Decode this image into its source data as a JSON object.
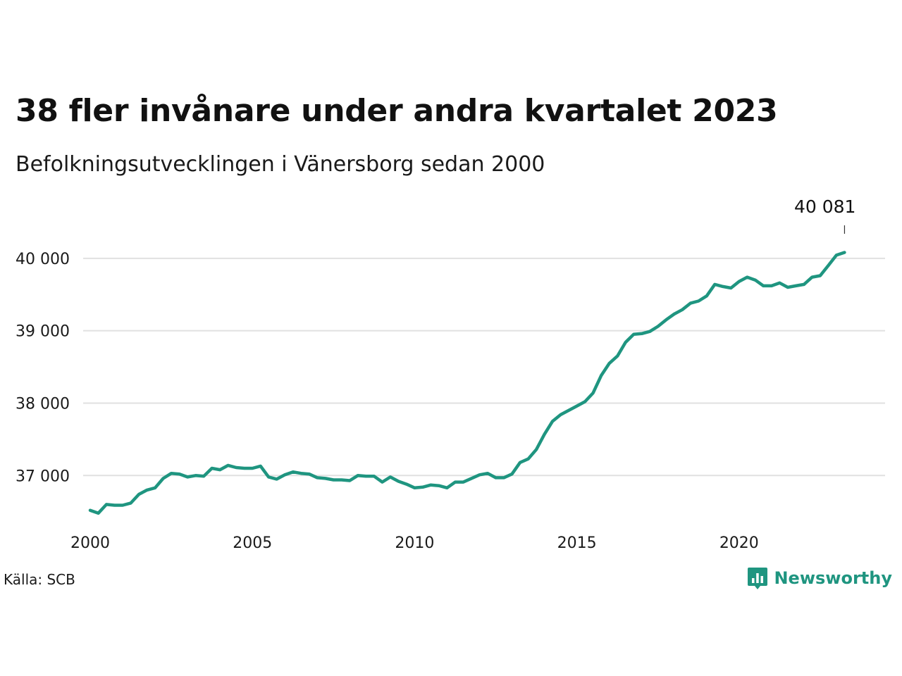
{
  "chart_data": {
    "type": "line",
    "title": "38 fler invånare under andra kvartalet 2023",
    "subtitle": "Befolkningsutvecklingen i Vänersborg sedan 2000",
    "xlabel": "",
    "ylabel": "",
    "x_ticks": [
      2000,
      2005,
      2010,
      2015,
      2020
    ],
    "x_tick_labels": [
      "2000",
      "2005",
      "2010",
      "2015",
      "2020"
    ],
    "y_ticks": [
      37000,
      38000,
      39000,
      40000
    ],
    "y_tick_labels": [
      "37 000",
      "38 000",
      "39 000",
      "40 000"
    ],
    "xlim": [
      2000,
      2024.5
    ],
    "ylim": [
      36400,
      40650
    ],
    "grid": "horizontal",
    "line_color": "#1f9580",
    "last_value_label": "40 081",
    "series": [
      {
        "points": [
          [
            2000.0,
            36520
          ],
          [
            2000.25,
            36480
          ],
          [
            2000.5,
            36600
          ],
          [
            2000.75,
            36590
          ],
          [
            2001.0,
            36590
          ],
          [
            2001.25,
            36620
          ],
          [
            2001.5,
            36740
          ],
          [
            2001.75,
            36800
          ],
          [
            2002.0,
            36830
          ],
          [
            2002.25,
            36960
          ],
          [
            2002.5,
            37030
          ],
          [
            2002.75,
            37020
          ],
          [
            2003.0,
            36980
          ],
          [
            2003.25,
            37000
          ],
          [
            2003.5,
            36990
          ],
          [
            2003.75,
            37100
          ],
          [
            2004.0,
            37080
          ],
          [
            2004.25,
            37140
          ],
          [
            2004.5,
            37110
          ],
          [
            2004.75,
            37100
          ],
          [
            2005.0,
            37100
          ],
          [
            2005.25,
            37130
          ],
          [
            2005.5,
            36980
          ],
          [
            2005.75,
            36950
          ],
          [
            2006.0,
            37010
          ],
          [
            2006.25,
            37050
          ],
          [
            2006.5,
            37030
          ],
          [
            2006.75,
            37020
          ],
          [
            2007.0,
            36970
          ],
          [
            2007.25,
            36960
          ],
          [
            2007.5,
            36940
          ],
          [
            2007.75,
            36940
          ],
          [
            2008.0,
            36930
          ],
          [
            2008.25,
            37000
          ],
          [
            2008.5,
            36990
          ],
          [
            2008.75,
            36990
          ],
          [
            2009.0,
            36910
          ],
          [
            2009.25,
            36980
          ],
          [
            2009.5,
            36920
          ],
          [
            2009.75,
            36880
          ],
          [
            2010.0,
            36830
          ],
          [
            2010.25,
            36840
          ],
          [
            2010.5,
            36870
          ],
          [
            2010.75,
            36860
          ],
          [
            2011.0,
            36830
          ],
          [
            2011.25,
            36910
          ],
          [
            2011.5,
            36910
          ],
          [
            2011.75,
            36960
          ],
          [
            2012.0,
            37010
          ],
          [
            2012.25,
            37030
          ],
          [
            2012.5,
            36970
          ],
          [
            2012.75,
            36970
          ],
          [
            2013.0,
            37020
          ],
          [
            2013.25,
            37180
          ],
          [
            2013.5,
            37230
          ],
          [
            2013.75,
            37360
          ],
          [
            2014.0,
            37570
          ],
          [
            2014.25,
            37750
          ],
          [
            2014.5,
            37840
          ],
          [
            2014.75,
            37900
          ],
          [
            2015.0,
            37960
          ],
          [
            2015.25,
            38020
          ],
          [
            2015.5,
            38140
          ],
          [
            2015.75,
            38380
          ],
          [
            2016.0,
            38550
          ],
          [
            2016.25,
            38650
          ],
          [
            2016.5,
            38840
          ],
          [
            2016.75,
            38950
          ],
          [
            2017.0,
            38960
          ],
          [
            2017.25,
            38990
          ],
          [
            2017.5,
            39060
          ],
          [
            2017.75,
            39150
          ],
          [
            2018.0,
            39230
          ],
          [
            2018.25,
            39290
          ],
          [
            2018.5,
            39380
          ],
          [
            2018.75,
            39410
          ],
          [
            2019.0,
            39480
          ],
          [
            2019.25,
            39640
          ],
          [
            2019.5,
            39610
          ],
          [
            2019.75,
            39590
          ],
          [
            2020.0,
            39680
          ],
          [
            2020.25,
            39740
          ],
          [
            2020.5,
            39700
          ],
          [
            2020.75,
            39620
          ],
          [
            2021.0,
            39620
          ],
          [
            2021.25,
            39660
          ],
          [
            2021.5,
            39600
          ],
          [
            2021.75,
            39620
          ],
          [
            2022.0,
            39640
          ],
          [
            2022.25,
            39740
          ],
          [
            2022.5,
            39760
          ],
          [
            2022.75,
            39900
          ],
          [
            2023.0,
            40043
          ],
          [
            2023.25,
            40081
          ]
        ]
      }
    ]
  },
  "footer": {
    "source": "Källa: SCB",
    "brand": "Newsworthy"
  },
  "icons": {
    "brand_logo": "bar-chart-speech-bubble-icon"
  }
}
